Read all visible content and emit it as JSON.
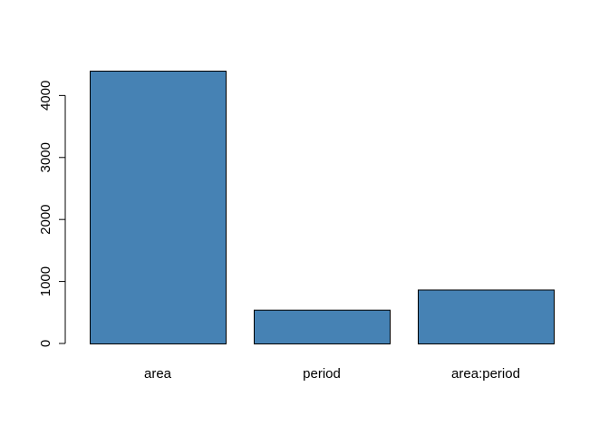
{
  "chart_data": {
    "type": "bar",
    "title": "",
    "xlabel": "",
    "ylabel": "",
    "categories": [
      "area",
      "period",
      "area:period"
    ],
    "values": [
      4400,
      545,
      870
    ],
    "ylim": [
      0,
      4400
    ],
    "yticks": [
      "0",
      "1000",
      "2000",
      "3000",
      "4000"
    ],
    "grid": false,
    "legend": "none",
    "colors": {
      "bar_fill": "#4682B4",
      "bar_stroke": "#000000",
      "axis": "#000000"
    }
  }
}
